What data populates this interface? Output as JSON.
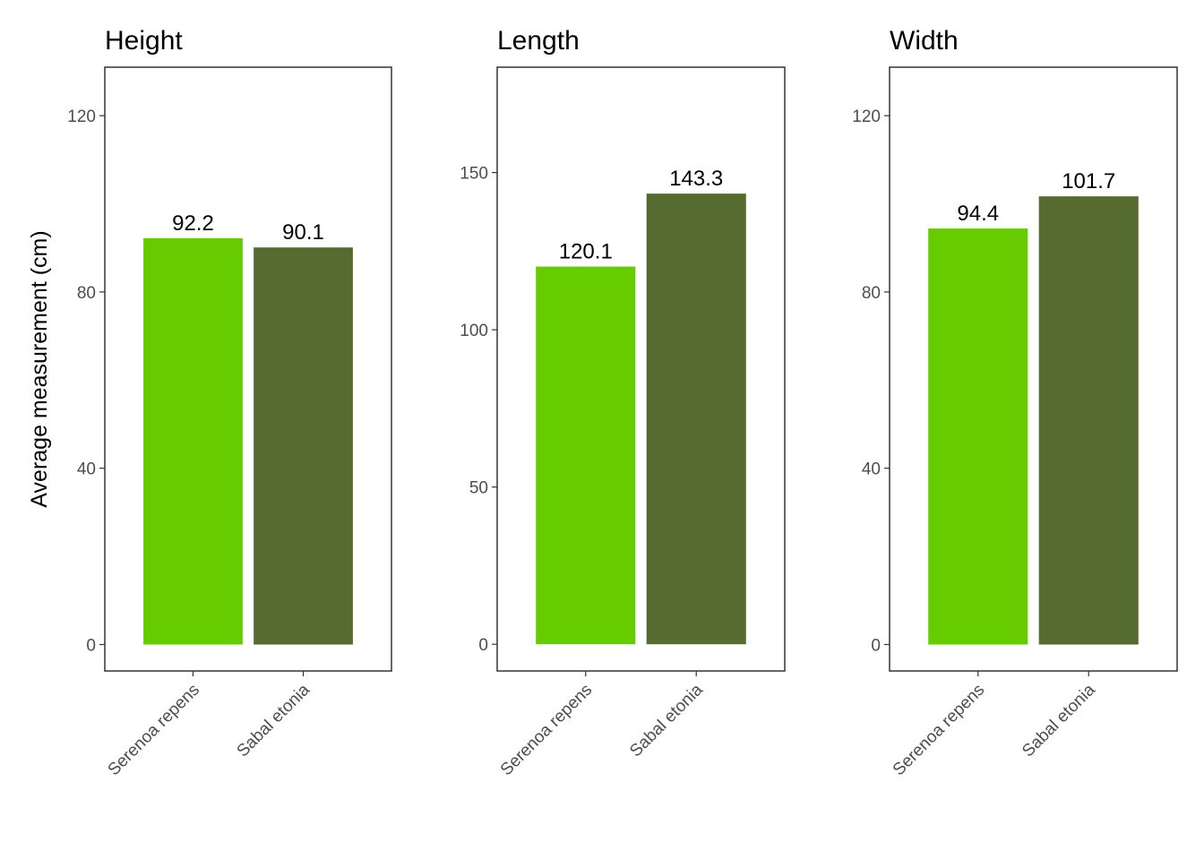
{
  "colors": {
    "Serenoa repens": "#66cc00",
    "Sabal etonia": "#556b2f",
    "axis": "#333333",
    "tick_text": "#4d4d4d"
  },
  "y_axis_title": "Average measurement (cm)",
  "chart_data": [
    {
      "type": "bar",
      "title": "Height",
      "categories": [
        "Serenoa repens",
        "Sabal etonia"
      ],
      "values": [
        92.2,
        90.1
      ],
      "value_labels": [
        "92.2",
        "90.1"
      ],
      "ylabel": "Average measurement (cm)",
      "ylim": [
        -6,
        131
      ],
      "yticks": [
        0,
        40,
        80,
        120
      ],
      "grid": false
    },
    {
      "type": "bar",
      "title": "Length",
      "categories": [
        "Serenoa repens",
        "Sabal etonia"
      ],
      "values": [
        120.1,
        143.3
      ],
      "value_labels": [
        "120.1",
        "143.3"
      ],
      "ylabel": "",
      "ylim": [
        -8.5,
        183.5
      ],
      "yticks": [
        0,
        50,
        100,
        150
      ],
      "grid": false
    },
    {
      "type": "bar",
      "title": "Width",
      "categories": [
        "Serenoa repens",
        "Sabal etonia"
      ],
      "values": [
        94.4,
        101.7
      ],
      "value_labels": [
        "94.4",
        "101.7"
      ],
      "ylabel": "",
      "ylim": [
        -6,
        131
      ],
      "yticks": [
        0,
        40,
        80,
        120
      ],
      "grid": false
    }
  ]
}
